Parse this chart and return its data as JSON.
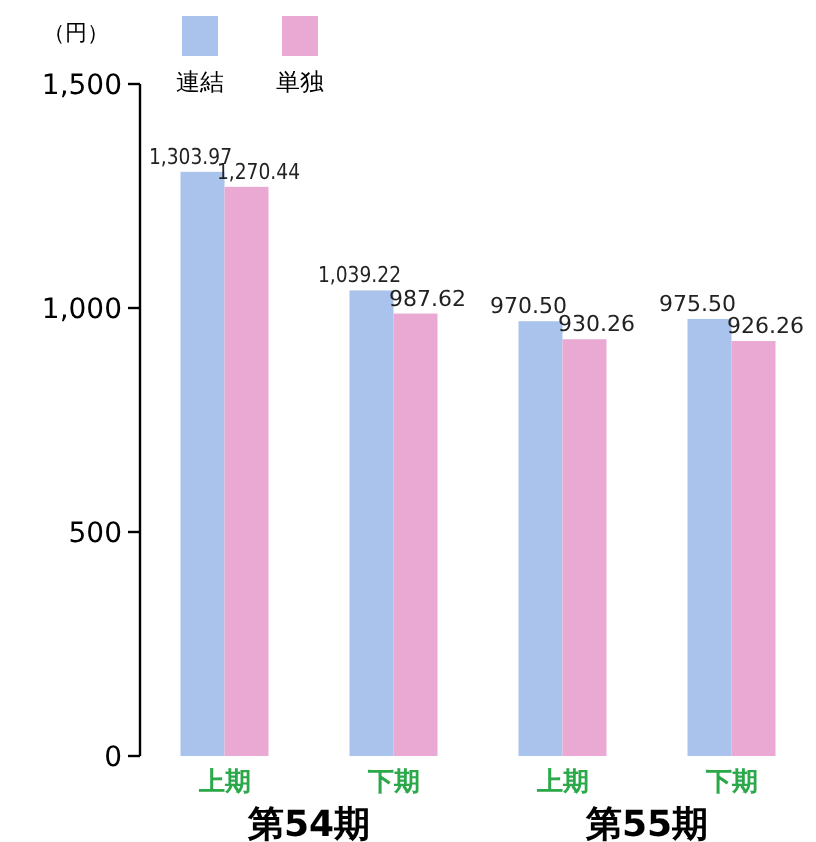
{
  "chart_data": {
    "type": "bar",
    "ylabel": "（円）",
    "categories": [
      "上期",
      "下期",
      "上期",
      "下期"
    ],
    "series": [
      {
        "name": "連結",
        "color": "#a9c3ec",
        "values": [
          1303.97,
          1039.22,
          970.5,
          975.5
        ],
        "value_labels": [
          "1,303.97",
          "1,039.22",
          "970.50",
          "975.50"
        ]
      },
      {
        "name": "単独",
        "color": "#eaa9d2",
        "values": [
          1270.44,
          987.62,
          930.26,
          926.26
        ],
        "value_labels": [
          "1,270.44",
          "987.62",
          "930.26",
          "926.26"
        ]
      }
    ],
    "ylim": [
      0,
      1500
    ],
    "yticks": [
      0,
      {
        "value": 500,
        "label": "500"
      },
      {
        "value": 1000,
        "label": "1,000"
      },
      {
        "value": 1500,
        "label": "1,500"
      }
    ],
    "legend": "top left",
    "grid": false,
    "annotations": [
      "第54期",
      "第55期"
    ]
  }
}
